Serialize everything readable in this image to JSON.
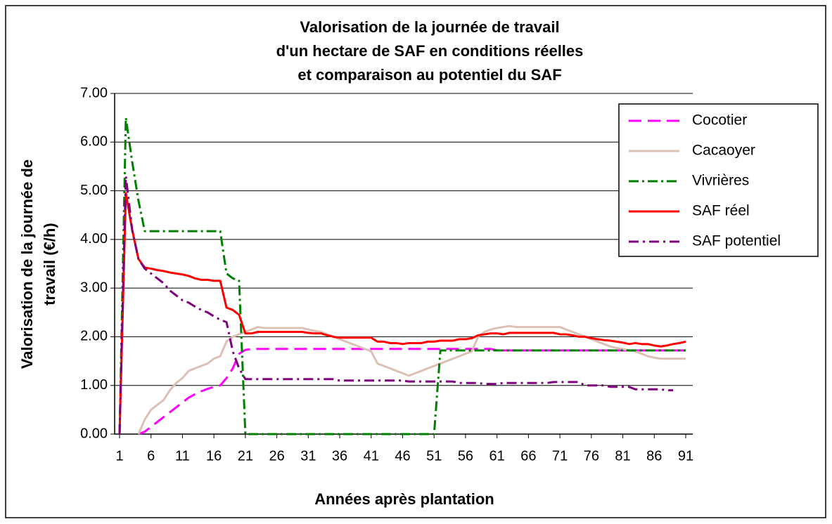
{
  "chart_data": {
    "type": "line",
    "title": [
      "Valorisation de la journée de travail",
      "d'un hectare de SAF en conditions réelles",
      "et comparaison au potentiel du SAF"
    ],
    "xlabel": "Années après plantation",
    "ylabel": [
      "Valorisation de la journée de",
      "travail (€/h)"
    ],
    "x": [
      1,
      2,
      3,
      4,
      5,
      6,
      7,
      8,
      9,
      10,
      11,
      12,
      13,
      14,
      15,
      16,
      17,
      18,
      19,
      20,
      21,
      22,
      23,
      24,
      25,
      26,
      27,
      28,
      29,
      30,
      31,
      32,
      33,
      34,
      35,
      36,
      37,
      38,
      39,
      40,
      41,
      42,
      43,
      44,
      45,
      46,
      47,
      48,
      49,
      50,
      51,
      52,
      53,
      54,
      55,
      56,
      57,
      58,
      59,
      60,
      61,
      62,
      63,
      64,
      65,
      66,
      67,
      68,
      69,
      70,
      71,
      72,
      73,
      74,
      75,
      76,
      77,
      78,
      79,
      80,
      81,
      82,
      83,
      84,
      85,
      86,
      87,
      88,
      89,
      90,
      91
    ],
    "xlim": [
      1,
      91
    ],
    "xticks": [
      1,
      6,
      11,
      16,
      21,
      26,
      31,
      36,
      41,
      46,
      51,
      56,
      61,
      66,
      71,
      76,
      81,
      86,
      91
    ],
    "ylim": [
      0,
      7
    ],
    "yticks": [
      {
        "value": 0,
        "label": "0.00"
      },
      {
        "value": 1,
        "label": "1.00"
      },
      {
        "value": 2,
        "label": "2.00"
      },
      {
        "value": 3,
        "label": "3.00"
      },
      {
        "value": 4,
        "label": "4.00"
      },
      {
        "value": 5,
        "label": "5.00"
      },
      {
        "value": 6,
        "label": "6.00"
      },
      {
        "value": 7,
        "label": "7.00"
      }
    ],
    "grid": true,
    "legend": "upper right",
    "series": [
      {
        "name": "Cocotier",
        "color": "#ff00ff",
        "dash": "18,9",
        "values": [
          null,
          null,
          null,
          0,
          0.05,
          0.15,
          0.25,
          0.35,
          0.45,
          0.55,
          0.65,
          0.75,
          0.82,
          0.88,
          0.93,
          0.97,
          1.0,
          1.15,
          1.35,
          1.65,
          1.73,
          1.75,
          1.75,
          1.75,
          1.75,
          1.75,
          1.75,
          1.75,
          1.75,
          1.75,
          1.75,
          1.75,
          1.75,
          1.75,
          1.75,
          1.75,
          1.75,
          1.75,
          1.75,
          1.75,
          1.75,
          1.75,
          1.75,
          1.75,
          1.75,
          1.75,
          1.75,
          1.75,
          1.75,
          1.75,
          1.75,
          1.75,
          1.75,
          1.75,
          1.75,
          1.75,
          1.75,
          1.75,
          1.75,
          1.75,
          1.72,
          1.72,
          1.72,
          1.72,
          1.72,
          1.72,
          1.72,
          1.72,
          1.72,
          1.72,
          1.72,
          1.72,
          1.72,
          1.72,
          1.72,
          1.72,
          1.72,
          1.72,
          1.72,
          1.72,
          1.72,
          1.72,
          1.72,
          1.72,
          1.72,
          1.72,
          1.72,
          1.72,
          1.72,
          1.72,
          1.72
        ]
      },
      {
        "name": "Cacaoyer",
        "color": "#dcc0b6",
        "dash": "none",
        "values": [
          null,
          null,
          null,
          0,
          0.3,
          0.5,
          0.6,
          0.7,
          0.9,
          1.05,
          1.15,
          1.3,
          1.35,
          1.4,
          1.45,
          1.55,
          1.6,
          1.9,
          2.0,
          2.05,
          2.1,
          2.15,
          2.2,
          2.18,
          2.18,
          2.18,
          2.18,
          2.18,
          2.18,
          2.18,
          2.15,
          2.12,
          2.1,
          2.05,
          2.0,
          1.95,
          1.9,
          1.85,
          1.8,
          1.75,
          1.7,
          1.45,
          1.4,
          1.35,
          1.3,
          1.25,
          1.2,
          1.25,
          1.3,
          1.35,
          1.4,
          1.45,
          1.5,
          1.55,
          1.6,
          1.65,
          1.7,
          2.0,
          2.1,
          2.15,
          2.18,
          2.2,
          2.22,
          2.2,
          2.2,
          2.2,
          2.2,
          2.2,
          2.2,
          2.2,
          2.2,
          2.15,
          2.1,
          2.05,
          2.0,
          1.95,
          1.9,
          1.85,
          1.8,
          1.77,
          1.75,
          1.72,
          1.7,
          1.65,
          1.6,
          1.57,
          1.55,
          1.55,
          1.55,
          1.55,
          1.55
        ]
      },
      {
        "name": "Vivrières",
        "color": "#008000",
        "dash": "14,5,3,5",
        "values": [
          0,
          6.5,
          5.6,
          4.8,
          4.17,
          4.17,
          4.17,
          4.17,
          4.17,
          4.17,
          4.17,
          4.17,
          4.17,
          4.17,
          4.17,
          4.17,
          4.17,
          3.3,
          3.2,
          3.15,
          0,
          0,
          0,
          0,
          0,
          0,
          0,
          0,
          0,
          0,
          0,
          0,
          0,
          0,
          0,
          0,
          0,
          0,
          0,
          0,
          0,
          0,
          0,
          0,
          0,
          0,
          0,
          0,
          0,
          0,
          0,
          1.72,
          1.72,
          1.72,
          1.72,
          1.72,
          1.72,
          1.72,
          1.72,
          1.72,
          1.72,
          1.72,
          1.72,
          1.72,
          1.72,
          1.72,
          1.72,
          1.72,
          1.72,
          1.72,
          1.72,
          1.72,
          1.72,
          1.72,
          1.72,
          1.72,
          1.72,
          1.72,
          1.72,
          1.72,
          1.72,
          1.72,
          1.72,
          1.72,
          1.72,
          1.72,
          1.72,
          1.72,
          1.72,
          1.72,
          1.72
        ]
      },
      {
        "name": "SAF réel",
        "color": "#ff0000",
        "dash": "none",
        "values": [
          0,
          4.95,
          4.2,
          3.6,
          3.42,
          3.4,
          3.37,
          3.35,
          3.32,
          3.3,
          3.28,
          3.25,
          3.2,
          3.17,
          3.17,
          3.15,
          3.15,
          2.6,
          2.55,
          2.45,
          2.07,
          2.07,
          2.1,
          2.1,
          2.1,
          2.1,
          2.1,
          2.1,
          2.1,
          2.1,
          2.08,
          2.07,
          2.07,
          2.03,
          2.0,
          1.98,
          1.98,
          1.98,
          1.98,
          1.98,
          1.98,
          1.9,
          1.9,
          1.87,
          1.87,
          1.85,
          1.87,
          1.87,
          1.87,
          1.9,
          1.9,
          1.92,
          1.92,
          1.92,
          1.95,
          1.95,
          1.97,
          2.03,
          2.05,
          2.07,
          2.07,
          2.05,
          2.08,
          2.08,
          2.08,
          2.08,
          2.08,
          2.08,
          2.08,
          2.08,
          2.05,
          2.05,
          2.03,
          2.0,
          2.0,
          1.97,
          1.95,
          1.93,
          1.92,
          1.9,
          1.88,
          1.85,
          1.87,
          1.85,
          1.85,
          1.82,
          1.8,
          1.82,
          1.85,
          1.87,
          1.9
        ]
      },
      {
        "name": "SAF potentiel",
        "color": "#800080",
        "dash": "14,6,3,6",
        "values": [
          0,
          5.3,
          4.2,
          3.6,
          3.4,
          3.3,
          3.2,
          3.1,
          2.95,
          2.85,
          2.75,
          2.7,
          2.62,
          2.55,
          2.5,
          2.42,
          2.35,
          2.3,
          1.7,
          1.35,
          1.13,
          1.13,
          1.13,
          1.13,
          1.13,
          1.13,
          1.13,
          1.13,
          1.13,
          1.13,
          1.13,
          1.13,
          1.13,
          1.13,
          1.13,
          1.1,
          1.1,
          1.1,
          1.1,
          1.1,
          1.1,
          1.1,
          1.1,
          1.1,
          1.1,
          1.1,
          1.08,
          1.08,
          1.08,
          1.08,
          1.08,
          1.08,
          1.08,
          1.08,
          1.05,
          1.05,
          1.05,
          1.05,
          1.03,
          1.03,
          1.03,
          1.05,
          1.05,
          1.05,
          1.05,
          1.05,
          1.05,
          1.05,
          1.05,
          1.07,
          1.07,
          1.07,
          1.07,
          1.07,
          1.0,
          1.0,
          1.0,
          1.0,
          0.97,
          0.97,
          0.97,
          0.97,
          0.92,
          0.92,
          0.92,
          0.92,
          0.92,
          0.9,
          0.9,
          null,
          null
        ]
      }
    ]
  }
}
